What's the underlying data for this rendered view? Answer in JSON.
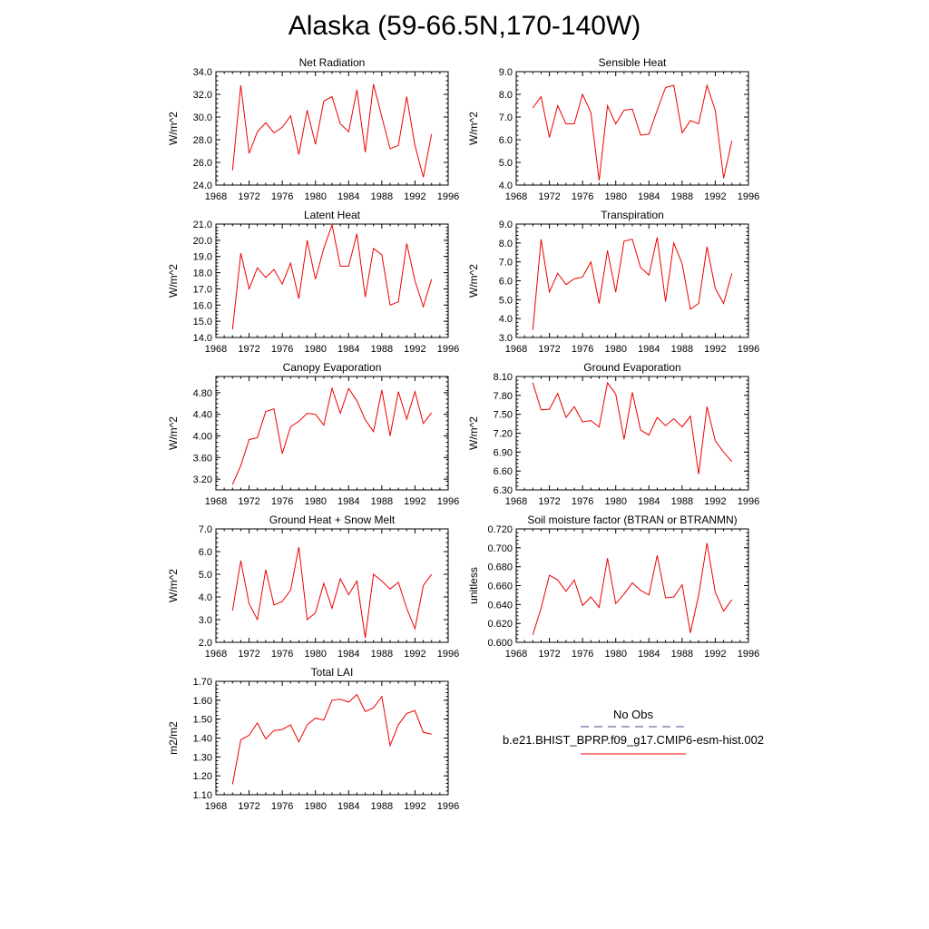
{
  "title": "Alaska (59-66.5N,170-140W)",
  "chart_data": [
    {
      "type": "line",
      "title": "Net Radiation",
      "ylabel": "W/m^2",
      "xlim": [
        1968,
        1996
      ],
      "ylim": [
        24.0,
        34.0
      ],
      "xticks": [
        "1968",
        "1972",
        "1976",
        "1980",
        "1984",
        "1988",
        "1992",
        "1996"
      ],
      "yticks": [
        "24.0",
        "26.0",
        "28.0",
        "30.0",
        "32.0",
        "34.0"
      ],
      "x": [
        1970,
        1971,
        1972,
        1973,
        1974,
        1975,
        1976,
        1977,
        1978,
        1979,
        1980,
        1981,
        1982,
        1983,
        1984,
        1985,
        1986,
        1987,
        1988,
        1989,
        1990,
        1991,
        1992,
        1993,
        1994
      ],
      "series": [
        {
          "color": "#ee0000",
          "values": [
            25.3,
            32.8,
            26.8,
            28.7,
            29.5,
            28.6,
            29.1,
            30.1,
            26.7,
            30.6,
            27.6,
            31.4,
            31.8,
            29.4,
            28.7,
            32.4,
            26.9,
            32.9,
            30.0,
            27.2,
            27.5,
            31.8,
            27.5,
            24.7,
            28.5
          ]
        }
      ]
    },
    {
      "type": "line",
      "title": "Sensible Heat",
      "ylabel": "W/m^2",
      "xlim": [
        1968,
        1996
      ],
      "ylim": [
        4.0,
        9.0
      ],
      "xticks": [
        "1968",
        "1972",
        "1976",
        "1980",
        "1984",
        "1988",
        "1992",
        "1996"
      ],
      "yticks": [
        "4.0",
        "5.0",
        "6.0",
        "7.0",
        "8.0",
        "9.0"
      ],
      "x": [
        1970,
        1971,
        1972,
        1973,
        1974,
        1975,
        1976,
        1977,
        1978,
        1979,
        1980,
        1981,
        1982,
        1983,
        1984,
        1985,
        1986,
        1987,
        1988,
        1989,
        1990,
        1991,
        1992,
        1993,
        1994
      ],
      "series": [
        {
          "color": "#ee0000",
          "values": [
            7.4,
            7.9,
            6.1,
            7.5,
            6.7,
            6.7,
            8.0,
            7.2,
            4.2,
            7.5,
            6.7,
            7.3,
            7.35,
            6.2,
            6.25,
            7.3,
            8.3,
            8.4,
            6.3,
            6.85,
            6.7,
            8.4,
            7.3,
            4.3,
            5.95
          ]
        }
      ]
    },
    {
      "type": "line",
      "title": "Latent Heat",
      "ylabel": "W/m^2",
      "xlim": [
        1968,
        1996
      ],
      "ylim": [
        14.0,
        21.0
      ],
      "xticks": [
        "1968",
        "1972",
        "1976",
        "1980",
        "1984",
        "1988",
        "1992",
        "1996"
      ],
      "yticks": [
        "14.0",
        "15.0",
        "16.0",
        "17.0",
        "18.0",
        "19.0",
        "20.0",
        "21.0"
      ],
      "x": [
        1970,
        1971,
        1972,
        1973,
        1974,
        1975,
        1976,
        1977,
        1978,
        1979,
        1980,
        1981,
        1982,
        1983,
        1984,
        1985,
        1986,
        1987,
        1988,
        1989,
        1990,
        1991,
        1992,
        1993,
        1994
      ],
      "series": [
        {
          "color": "#ee0000",
          "values": [
            14.5,
            19.2,
            17.0,
            18.3,
            17.7,
            18.2,
            17.3,
            18.6,
            16.4,
            20.0,
            17.6,
            19.5,
            20.95,
            18.4,
            18.4,
            20.4,
            16.5,
            19.5,
            19.1,
            16.0,
            16.2,
            19.8,
            17.5,
            15.9,
            17.6
          ]
        }
      ]
    },
    {
      "type": "line",
      "title": "Transpiration",
      "ylabel": "W/m^2",
      "xlim": [
        1968,
        1996
      ],
      "ylim": [
        3.0,
        9.0
      ],
      "xticks": [
        "1968",
        "1972",
        "1976",
        "1980",
        "1984",
        "1988",
        "1992",
        "1996"
      ],
      "yticks": [
        "3.0",
        "4.0",
        "5.0",
        "6.0",
        "7.0",
        "8.0",
        "9.0"
      ],
      "x": [
        1970,
        1971,
        1972,
        1973,
        1974,
        1975,
        1976,
        1977,
        1978,
        1979,
        1980,
        1981,
        1982,
        1983,
        1984,
        1985,
        1986,
        1987,
        1988,
        1989,
        1990,
        1991,
        1992,
        1993,
        1994
      ],
      "series": [
        {
          "color": "#ee0000",
          "values": [
            3.4,
            8.2,
            5.4,
            6.4,
            5.8,
            6.1,
            6.2,
            7.0,
            4.8,
            7.6,
            5.4,
            8.1,
            8.2,
            6.7,
            6.3,
            8.3,
            4.9,
            8.0,
            6.9,
            4.5,
            4.8,
            7.8,
            5.6,
            4.8,
            6.4
          ]
        }
      ]
    },
    {
      "type": "line",
      "title": "Canopy Evaporation",
      "ylabel": "W/m^2",
      "xlim": [
        1968,
        1996
      ],
      "ylim": [
        3.0,
        5.1
      ],
      "xticks": [
        "1968",
        "1972",
        "1976",
        "1980",
        "1984",
        "1988",
        "1992",
        "1996"
      ],
      "yticks": [
        "3.20",
        "3.60",
        "4.00",
        "4.40",
        "4.80"
      ],
      "x": [
        1970,
        1971,
        1972,
        1973,
        1974,
        1975,
        1976,
        1977,
        1978,
        1979,
        1980,
        1981,
        1982,
        1983,
        1984,
        1985,
        1986,
        1987,
        1988,
        1989,
        1990,
        1991,
        1992,
        1993,
        1994
      ],
      "series": [
        {
          "color": "#ee0000",
          "values": [
            3.1,
            3.45,
            3.93,
            3.97,
            4.45,
            4.5,
            3.67,
            4.17,
            4.27,
            4.42,
            4.4,
            4.2,
            4.88,
            4.42,
            4.88,
            4.65,
            4.3,
            4.08,
            4.85,
            4.0,
            4.82,
            4.31,
            4.82,
            4.23,
            4.43
          ]
        }
      ]
    },
    {
      "type": "line",
      "title": "Ground Evaporation",
      "ylabel": "W/m^2",
      "xlim": [
        1968,
        1996
      ],
      "ylim": [
        6.3,
        8.1
      ],
      "xticks": [
        "1968",
        "1972",
        "1976",
        "1980",
        "1984",
        "1988",
        "1992",
        "1996"
      ],
      "yticks": [
        "6.30",
        "6.60",
        "6.90",
        "7.20",
        "7.50",
        "7.80",
        "8.10"
      ],
      "x": [
        1970,
        1971,
        1972,
        1973,
        1974,
        1975,
        1976,
        1977,
        1978,
        1979,
        1980,
        1981,
        1982,
        1983,
        1984,
        1985,
        1986,
        1987,
        1988,
        1989,
        1990,
        1991,
        1992,
        1993,
        1994
      ],
      "series": [
        {
          "color": "#ee0000",
          "values": [
            8.0,
            7.57,
            7.58,
            7.83,
            7.45,
            7.62,
            7.38,
            7.4,
            7.3,
            8.0,
            7.82,
            7.1,
            7.85,
            7.25,
            7.17,
            7.45,
            7.32,
            7.43,
            7.3,
            7.47,
            6.55,
            7.62,
            7.08,
            6.9,
            6.75
          ]
        }
      ]
    },
    {
      "type": "line",
      "title": "Ground Heat + Snow Melt",
      "ylabel": "W/m^2",
      "xlim": [
        1968,
        1996
      ],
      "ylim": [
        2.0,
        7.0
      ],
      "xticks": [
        "1968",
        "1972",
        "1976",
        "1980",
        "1984",
        "1988",
        "1992",
        "1996"
      ],
      "yticks": [
        "2.0",
        "3.0",
        "4.0",
        "5.0",
        "6.0",
        "7.0"
      ],
      "x": [
        1970,
        1971,
        1972,
        1973,
        1974,
        1975,
        1976,
        1977,
        1978,
        1979,
        1980,
        1981,
        1982,
        1983,
        1984,
        1985,
        1986,
        1987,
        1988,
        1989,
        1990,
        1991,
        1992,
        1993,
        1994
      ],
      "series": [
        {
          "color": "#ee0000",
          "values": [
            3.4,
            5.6,
            3.7,
            3.0,
            5.2,
            3.65,
            3.8,
            4.3,
            6.2,
            3.0,
            3.3,
            4.6,
            3.5,
            4.8,
            4.1,
            4.7,
            2.2,
            5.0,
            4.7,
            4.35,
            4.65,
            3.5,
            2.6,
            4.5,
            5.0
          ]
        }
      ]
    },
    {
      "type": "line",
      "title": "Soil moisture factor (BTRAN or BTRANMN)",
      "ylabel": "unitless",
      "xlim": [
        1968,
        1996
      ],
      "ylim": [
        0.6,
        0.72
      ],
      "xticks": [
        "1968",
        "1972",
        "1976",
        "1980",
        "1984",
        "1988",
        "1992",
        "1996"
      ],
      "yticks": [
        "0.600",
        "0.620",
        "0.640",
        "0.660",
        "0.680",
        "0.700",
        "0.720"
      ],
      "x": [
        1970,
        1971,
        1972,
        1973,
        1974,
        1975,
        1976,
        1977,
        1978,
        1979,
        1980,
        1981,
        1982,
        1983,
        1984,
        1985,
        1986,
        1987,
        1988,
        1989,
        1990,
        1991,
        1992,
        1993,
        1994
      ],
      "series": [
        {
          "color": "#ee0000",
          "values": [
            0.608,
            0.636,
            0.671,
            0.666,
            0.654,
            0.666,
            0.639,
            0.648,
            0.637,
            0.689,
            0.641,
            0.651,
            0.663,
            0.655,
            0.65,
            0.692,
            0.647,
            0.648,
            0.661,
            0.61,
            0.65,
            0.705,
            0.653,
            0.633,
            0.645
          ]
        }
      ]
    },
    {
      "type": "line",
      "title": "Total LAI",
      "ylabel": "m2/m2",
      "xlim": [
        1968,
        1996
      ],
      "ylim": [
        1.1,
        1.7
      ],
      "xticks": [
        "1968",
        "1972",
        "1976",
        "1980",
        "1984",
        "1988",
        "1992",
        "1996"
      ],
      "yticks": [
        "1.10",
        "1.20",
        "1.30",
        "1.40",
        "1.50",
        "1.60",
        "1.70"
      ],
      "x": [
        1970,
        1971,
        1972,
        1973,
        1974,
        1975,
        1976,
        1977,
        1978,
        1979,
        1980,
        1981,
        1982,
        1983,
        1984,
        1985,
        1986,
        1987,
        1988,
        1989,
        1990,
        1991,
        1992,
        1993,
        1994
      ],
      "series": [
        {
          "color": "#ee0000",
          "values": [
            1.155,
            1.39,
            1.415,
            1.48,
            1.395,
            1.44,
            1.445,
            1.47,
            1.38,
            1.47,
            1.505,
            1.495,
            1.6,
            1.605,
            1.59,
            1.63,
            1.54,
            1.56,
            1.62,
            1.36,
            1.47,
            1.53,
            1.545,
            1.43,
            1.42
          ]
        }
      ]
    }
  ],
  "legend": {
    "obs_label": "No Obs",
    "obs_color": "#3b4f8a",
    "model_label": "b.e21.BHIST_BPRP.f09_g17.CMIP6-esm-hist.002",
    "model_color": "#ee0000"
  }
}
